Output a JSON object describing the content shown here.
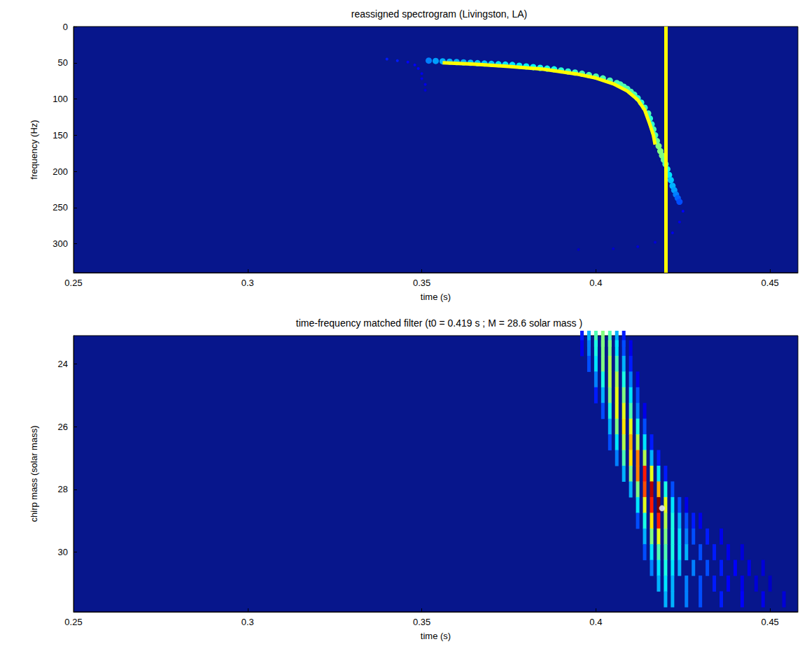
{
  "chart_data": [
    {
      "type": "heatmap",
      "title": "reassigned spectrogram (Livingston, LA)",
      "x_label": "time (s)",
      "y_label": "frequency (Hz)",
      "xlim": [
        0.25,
        0.458
      ],
      "xticks": [
        0.25,
        0.3,
        0.35,
        0.4,
        0.45
      ],
      "ylim": [
        340,
        0
      ],
      "yticks": [
        0,
        50,
        100,
        150,
        200,
        250,
        300
      ],
      "grid": false,
      "color_range": [
        0,
        1
      ],
      "cells": [
        [
          0.352,
          47,
          0.25
        ],
        [
          0.354,
          47.5,
          0.28
        ],
        [
          0.356,
          48,
          0.3
        ],
        [
          0.358,
          48.5,
          0.3
        ],
        [
          0.36,
          49,
          0.3
        ],
        [
          0.362,
          49.5,
          0.3
        ],
        [
          0.364,
          50,
          0.32
        ],
        [
          0.366,
          50.5,
          0.32
        ],
        [
          0.368,
          51,
          0.32
        ],
        [
          0.37,
          51.5,
          0.33
        ],
        [
          0.372,
          52,
          0.35
        ],
        [
          0.374,
          52.5,
          0.35
        ],
        [
          0.376,
          53,
          0.35
        ],
        [
          0.378,
          54,
          0.36
        ],
        [
          0.38,
          55,
          0.37
        ],
        [
          0.382,
          56,
          0.38
        ],
        [
          0.384,
          57,
          0.4
        ],
        [
          0.386,
          58,
          0.4
        ],
        [
          0.388,
          59,
          0.4
        ],
        [
          0.39,
          60.5,
          0.42
        ],
        [
          0.392,
          62,
          0.42
        ],
        [
          0.394,
          63.5,
          0.43
        ],
        [
          0.396,
          65,
          0.45
        ],
        [
          0.398,
          67,
          0.45
        ],
        [
          0.4,
          69,
          0.45
        ],
        [
          0.402,
          71.5,
          0.45
        ],
        [
          0.404,
          74.5,
          0.45
        ],
        [
          0.406,
          78,
          0.45
        ],
        [
          0.407,
          80,
          0.45
        ],
        [
          0.408,
          83,
          0.45
        ],
        [
          0.409,
          86,
          0.45
        ],
        [
          0.41,
          90,
          0.45
        ],
        [
          0.411,
          94,
          0.45
        ],
        [
          0.412,
          99,
          0.42
        ],
        [
          0.413,
          105,
          0.42
        ],
        [
          0.414,
          112,
          0.43
        ],
        [
          0.415,
          120,
          0.45
        ],
        [
          0.4155,
          127,
          0.42
        ],
        [
          0.416,
          135,
          0.42
        ],
        [
          0.4165,
          142,
          0.45
        ],
        [
          0.417,
          150,
          0.45
        ],
        [
          0.4175,
          158,
          0.48
        ],
        [
          0.418,
          165,
          0.5
        ],
        [
          0.4185,
          172,
          0.5
        ],
        [
          0.419,
          178,
          0.5
        ],
        [
          0.4195,
          184,
          0.48
        ],
        [
          0.42,
          190,
          0.45
        ],
        [
          0.4205,
          197,
          0.4
        ],
        [
          0.421,
          205,
          0.35
        ],
        [
          0.4215,
          212,
          0.32
        ],
        [
          0.422,
          220,
          0.3
        ],
        [
          0.4225,
          226,
          0.28
        ],
        [
          0.423,
          232,
          0.25
        ],
        [
          0.4235,
          237,
          0.22
        ],
        [
          0.424,
          242,
          0.2
        ],
        [
          0.34,
          45,
          0.15
        ],
        [
          0.343,
          47,
          0.15
        ],
        [
          0.346,
          49,
          0.12
        ],
        [
          0.348,
          53,
          0.12
        ],
        [
          0.349,
          58,
          0.12
        ],
        [
          0.35,
          65,
          0.1
        ],
        [
          0.35,
          72,
          0.1
        ],
        [
          0.351,
          80,
          0.1
        ],
        [
          0.351,
          88,
          0.08
        ],
        [
          0.395,
          308,
          0.06
        ],
        [
          0.405,
          307,
          0.07
        ],
        [
          0.412,
          304,
          0.08
        ],
        [
          0.417,
          298,
          0.08
        ],
        [
          0.422,
          285,
          0.1
        ],
        [
          0.424,
          270,
          0.1
        ],
        [
          0.425,
          255,
          0.12
        ]
      ],
      "line": {
        "color": "#ffff00",
        "x": [
          0.356,
          0.365,
          0.375,
          0.385,
          0.395,
          0.4,
          0.405,
          0.409,
          0.412,
          0.414,
          0.4155,
          0.4165,
          0.417
        ],
        "y": [
          50,
          52,
          55,
          59,
          66,
          71,
          79,
          89,
          101,
          115,
          135,
          150,
          163
        ]
      },
      "vertical_line": {
        "x": 0.419,
        "color": "#ffff00"
      }
    },
    {
      "type": "heatmap",
      "title": "time-frequency matched filter (t0 = 0.419 s ; M = 28.6 solar mass )",
      "x_label": "time (s)",
      "y_label": "chirp mass (solar mass)",
      "xlim": [
        0.25,
        0.458
      ],
      "xticks": [
        0.25,
        0.3,
        0.35,
        0.4,
        0.45
      ],
      "ylim": [
        31.9,
        23.1
      ],
      "yticks": [
        24,
        26,
        28,
        30
      ],
      "grid": false,
      "color_range": [
        0,
        1
      ],
      "cells": [
        [
          0.396,
          23.2,
          0.15
        ],
        [
          0.398,
          23.2,
          0.3
        ],
        [
          0.4,
          23.2,
          0.45
        ],
        [
          0.402,
          23.2,
          0.5
        ],
        [
          0.404,
          23.2,
          0.45
        ],
        [
          0.406,
          23.2,
          0.3
        ],
        [
          0.408,
          23.2,
          0.15
        ],
        [
          0.396,
          23.5,
          0.1
        ],
        [
          0.398,
          23.5,
          0.25
        ],
        [
          0.4,
          23.5,
          0.4
        ],
        [
          0.402,
          23.5,
          0.5
        ],
        [
          0.404,
          23.5,
          0.5
        ],
        [
          0.406,
          23.5,
          0.35
        ],
        [
          0.408,
          23.5,
          0.2
        ],
        [
          0.41,
          23.5,
          0.1
        ],
        [
          0.398,
          24,
          0.2
        ],
        [
          0.4,
          24,
          0.35
        ],
        [
          0.402,
          24,
          0.5
        ],
        [
          0.404,
          24,
          0.55
        ],
        [
          0.406,
          24,
          0.45
        ],
        [
          0.408,
          24,
          0.3
        ],
        [
          0.41,
          24,
          0.15
        ],
        [
          0.4,
          24.5,
          0.25
        ],
        [
          0.402,
          24.5,
          0.4
        ],
        [
          0.404,
          24.5,
          0.55
        ],
        [
          0.406,
          24.5,
          0.55
        ],
        [
          0.408,
          24.5,
          0.4
        ],
        [
          0.41,
          24.5,
          0.25
        ],
        [
          0.412,
          24.5,
          0.1
        ],
        [
          0.4,
          25,
          0.15
        ],
        [
          0.402,
          25,
          0.3
        ],
        [
          0.404,
          25,
          0.5
        ],
        [
          0.406,
          25,
          0.6
        ],
        [
          0.408,
          25,
          0.5
        ],
        [
          0.41,
          25,
          0.35
        ],
        [
          0.412,
          25,
          0.2
        ],
        [
          0.402,
          25.5,
          0.2
        ],
        [
          0.404,
          25.5,
          0.4
        ],
        [
          0.406,
          25.5,
          0.6
        ],
        [
          0.408,
          25.5,
          0.6
        ],
        [
          0.41,
          25.5,
          0.45
        ],
        [
          0.412,
          25.5,
          0.25
        ],
        [
          0.414,
          25.5,
          0.1
        ],
        [
          0.404,
          26,
          0.3
        ],
        [
          0.406,
          26,
          0.5
        ],
        [
          0.408,
          26,
          0.65
        ],
        [
          0.41,
          26,
          0.6
        ],
        [
          0.412,
          26,
          0.4
        ],
        [
          0.414,
          26,
          0.2
        ],
        [
          0.404,
          26.5,
          0.2
        ],
        [
          0.406,
          26.5,
          0.35
        ],
        [
          0.408,
          26.5,
          0.55
        ],
        [
          0.41,
          26.5,
          0.7
        ],
        [
          0.412,
          26.5,
          0.55
        ],
        [
          0.414,
          26.5,
          0.35
        ],
        [
          0.416,
          26.5,
          0.15
        ],
        [
          0.406,
          27,
          0.25
        ],
        [
          0.408,
          27,
          0.45
        ],
        [
          0.41,
          27,
          0.65
        ],
        [
          0.412,
          27,
          0.75
        ],
        [
          0.414,
          27,
          0.55
        ],
        [
          0.416,
          27,
          0.3
        ],
        [
          0.418,
          27,
          0.15
        ],
        [
          0.408,
          27.5,
          0.3
        ],
        [
          0.41,
          27.5,
          0.5
        ],
        [
          0.412,
          27.5,
          0.75
        ],
        [
          0.414,
          27.5,
          0.85
        ],
        [
          0.416,
          27.5,
          0.6
        ],
        [
          0.418,
          27.5,
          0.35
        ],
        [
          0.42,
          27.5,
          0.15
        ],
        [
          0.41,
          28,
          0.3
        ],
        [
          0.412,
          28,
          0.5
        ],
        [
          0.414,
          28,
          0.8
        ],
        [
          0.416,
          28,
          0.95
        ],
        [
          0.418,
          28,
          0.7
        ],
        [
          0.42,
          28,
          0.4
        ],
        [
          0.422,
          28,
          0.2
        ],
        [
          0.412,
          28.5,
          0.35
        ],
        [
          0.414,
          28.5,
          0.6
        ],
        [
          0.416,
          28.5,
          0.85
        ],
        [
          0.418,
          28.5,
          1.0
        ],
        [
          0.42,
          28.5,
          0.6
        ],
        [
          0.422,
          28.5,
          0.35
        ],
        [
          0.424,
          28.5,
          0.2
        ],
        [
          0.426,
          28.5,
          0.1
        ],
        [
          0.412,
          29,
          0.2
        ],
        [
          0.414,
          29,
          0.4
        ],
        [
          0.416,
          29,
          0.65
        ],
        [
          0.418,
          29,
          0.85
        ],
        [
          0.42,
          29,
          0.55
        ],
        [
          0.422,
          29,
          0.4
        ],
        [
          0.424,
          29,
          0.3
        ],
        [
          0.426,
          29,
          0.2
        ],
        [
          0.428,
          29,
          0.15
        ],
        [
          0.43,
          29,
          0.1
        ],
        [
          0.414,
          29.5,
          0.3
        ],
        [
          0.416,
          29.5,
          0.5
        ],
        [
          0.418,
          29.5,
          0.6
        ],
        [
          0.42,
          29.5,
          0.5
        ],
        [
          0.422,
          29.5,
          0.4
        ],
        [
          0.424,
          29.5,
          0.35
        ],
        [
          0.426,
          29.5,
          0.25
        ],
        [
          0.428,
          29.5,
          0.2
        ],
        [
          0.432,
          29.5,
          0.15
        ],
        [
          0.436,
          29.5,
          0.1
        ],
        [
          0.414,
          30,
          0.2
        ],
        [
          0.416,
          30,
          0.35
        ],
        [
          0.418,
          30,
          0.45
        ],
        [
          0.42,
          30,
          0.45
        ],
        [
          0.422,
          30,
          0.4
        ],
        [
          0.424,
          30,
          0.35
        ],
        [
          0.426,
          30,
          0.3
        ],
        [
          0.43,
          30,
          0.2
        ],
        [
          0.434,
          30,
          0.15
        ],
        [
          0.438,
          30,
          0.1
        ],
        [
          0.442,
          30,
          0.08
        ],
        [
          0.416,
          30.5,
          0.25
        ],
        [
          0.418,
          30.5,
          0.35
        ],
        [
          0.42,
          30.5,
          0.4
        ],
        [
          0.422,
          30.5,
          0.35
        ],
        [
          0.424,
          30.5,
          0.3
        ],
        [
          0.428,
          30.5,
          0.25
        ],
        [
          0.432,
          30.5,
          0.2
        ],
        [
          0.436,
          30.5,
          0.15
        ],
        [
          0.44,
          30.5,
          0.12
        ],
        [
          0.444,
          30.5,
          0.1
        ],
        [
          0.448,
          30.5,
          0.08
        ],
        [
          0.418,
          31,
          0.3
        ],
        [
          0.42,
          31,
          0.35
        ],
        [
          0.422,
          31,
          0.3
        ],
        [
          0.426,
          31,
          0.25
        ],
        [
          0.43,
          31,
          0.2
        ],
        [
          0.434,
          31,
          0.15
        ],
        [
          0.438,
          31,
          0.12
        ],
        [
          0.442,
          31,
          0.1
        ],
        [
          0.446,
          31,
          0.08
        ],
        [
          0.45,
          31,
          0.06
        ],
        [
          0.42,
          31.5,
          0.3
        ],
        [
          0.422,
          31.5,
          0.3
        ],
        [
          0.426,
          31.5,
          0.25
        ],
        [
          0.43,
          31.5,
          0.2
        ],
        [
          0.436,
          31.5,
          0.15
        ],
        [
          0.442,
          31.5,
          0.12
        ],
        [
          0.448,
          31.5,
          0.1
        ],
        [
          0.454,
          31.5,
          0.08
        ]
      ],
      "peak": {
        "x": 0.419,
        "y": 28.6,
        "color": "#ffffff",
        "marker": "circle"
      }
    }
  ]
}
